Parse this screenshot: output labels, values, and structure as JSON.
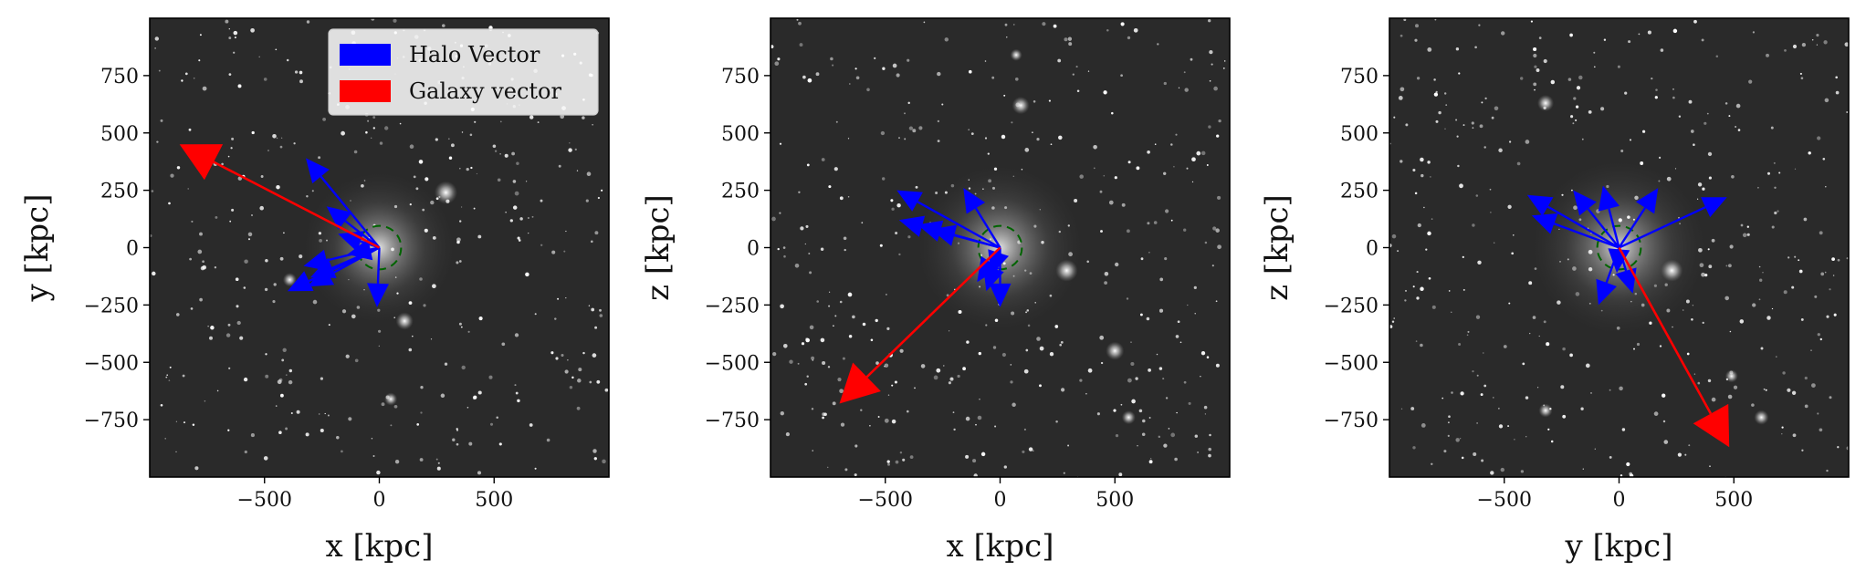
{
  "chart_data": [
    {
      "type": "scatter",
      "panel": "x-y projection",
      "xlabel": "x [kpc]",
      "ylabel": "y [kpc]",
      "xlim": [
        -1000,
        1000
      ],
      "ylim": [
        -1000,
        1000
      ],
      "xticks": [
        -500,
        0,
        500
      ],
      "yticks": [
        750,
        500,
        250,
        0,
        -250,
        -500,
        -750
      ],
      "grid": false,
      "background": "grayscale dark-matter density map",
      "circle": {
        "center": [
          0,
          0
        ],
        "radius": 95,
        "style": "dashed",
        "color": "#006400"
      },
      "legend": {
        "placement": "top-right",
        "entries": [
          {
            "label": "Halo Vector",
            "color": "#0000ff"
          },
          {
            "label": "Galaxy vector",
            "color": "#ff0000"
          }
        ]
      },
      "halo_vectors": [
        {
          "x": -320,
          "y": 390
        },
        {
          "x": -230,
          "y": 180
        },
        {
          "x": -180,
          "y": 60
        },
        {
          "x": -330,
          "y": -80
        },
        {
          "x": -300,
          "y": -130
        },
        {
          "x": -400,
          "y": -190
        },
        {
          "x": -310,
          "y": -170
        },
        {
          "x": -10,
          "y": -260
        },
        {
          "x": -140,
          "y": -30
        }
      ],
      "galaxy_vector": {
        "x": -870,
        "y": 450
      }
    },
    {
      "type": "scatter",
      "panel": "x-z projection",
      "xlabel": "x [kpc]",
      "ylabel": "z [kpc]",
      "xlim": [
        -1000,
        1000
      ],
      "ylim": [
        -1000,
        1000
      ],
      "xticks": [
        -500,
        0,
        500
      ],
      "yticks": [
        750,
        500,
        250,
        0,
        -250,
        -500,
        -750
      ],
      "grid": false,
      "background": "grayscale dark-matter density map",
      "circle": {
        "center": [
          0,
          0
        ],
        "radius": 95,
        "style": "dashed",
        "color": "#006400"
      },
      "halo_vectors": [
        {
          "x": -450,
          "y": 250
        },
        {
          "x": -440,
          "y": 120
        },
        {
          "x": -360,
          "y": 100
        },
        {
          "x": -300,
          "y": 80
        },
        {
          "x": -160,
          "y": 260
        },
        {
          "x": -100,
          "y": -150
        },
        {
          "x": -60,
          "y": -190
        },
        {
          "x": 0,
          "y": -260
        },
        {
          "x": -40,
          "y": -120
        }
      ],
      "galaxy_vector": {
        "x": -700,
        "y": -680
      }
    },
    {
      "type": "scatter",
      "panel": "y-z projection",
      "xlabel": "y [kpc]",
      "ylabel": "z [kpc]",
      "xlim": [
        -1000,
        1000
      ],
      "ylim": [
        -1000,
        1000
      ],
      "xticks": [
        -500,
        0,
        500
      ],
      "yticks": [
        750,
        500,
        250,
        0,
        -250,
        -500,
        -750
      ],
      "grid": false,
      "background": "grayscale dark-matter density map",
      "circle": {
        "center": [
          0,
          0
        ],
        "radius": 95,
        "style": "dashed",
        "color": "#006400"
      },
      "halo_vectors": [
        {
          "x": -400,
          "y": 230
        },
        {
          "x": -380,
          "y": 140
        },
        {
          "x": -200,
          "y": 250
        },
        {
          "x": -70,
          "y": 270
        },
        {
          "x": 170,
          "y": 260
        },
        {
          "x": 470,
          "y": 220
        },
        {
          "x": -90,
          "y": -250
        },
        {
          "x": 60,
          "y": -200
        },
        {
          "x": -10,
          "y": -110
        }
      ],
      "galaxy_vector": {
        "x": 480,
        "y": -870
      }
    }
  ]
}
